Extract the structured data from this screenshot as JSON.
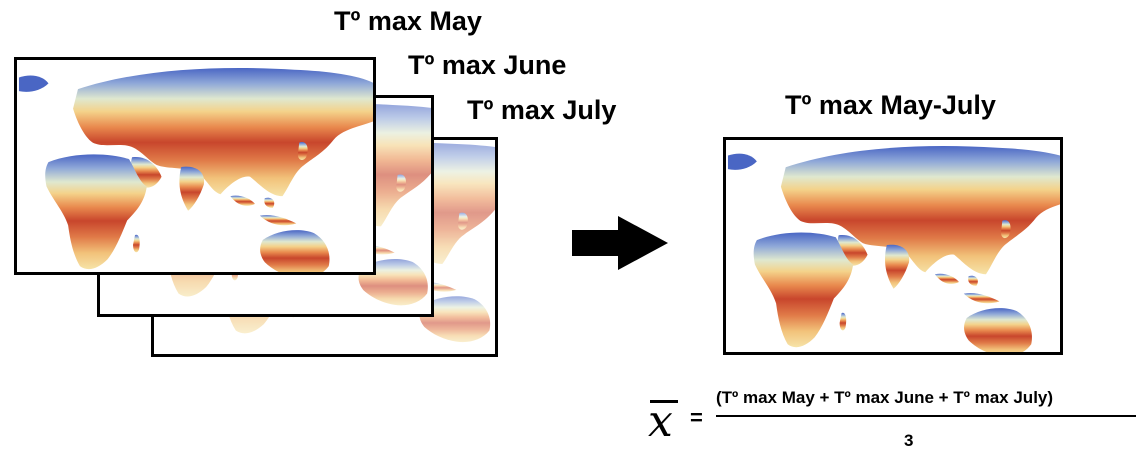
{
  "stack": {
    "titles": [
      "Tº max May",
      "Tº max June",
      "Tº max July"
    ]
  },
  "result": {
    "title": "Tº max May-July"
  },
  "formula": {
    "symbol": "x",
    "equals": "=",
    "numerator": "(Tº max May + Tº max June + Tº max July)",
    "denominator": "3"
  },
  "colors": {
    "hot": "#c8462c",
    "warm": "#e98a4e",
    "mild": "#f4d28a",
    "cool": "#eaf0c8",
    "cold": "#8fa8d8",
    "frozen": "#4a66c4"
  }
}
